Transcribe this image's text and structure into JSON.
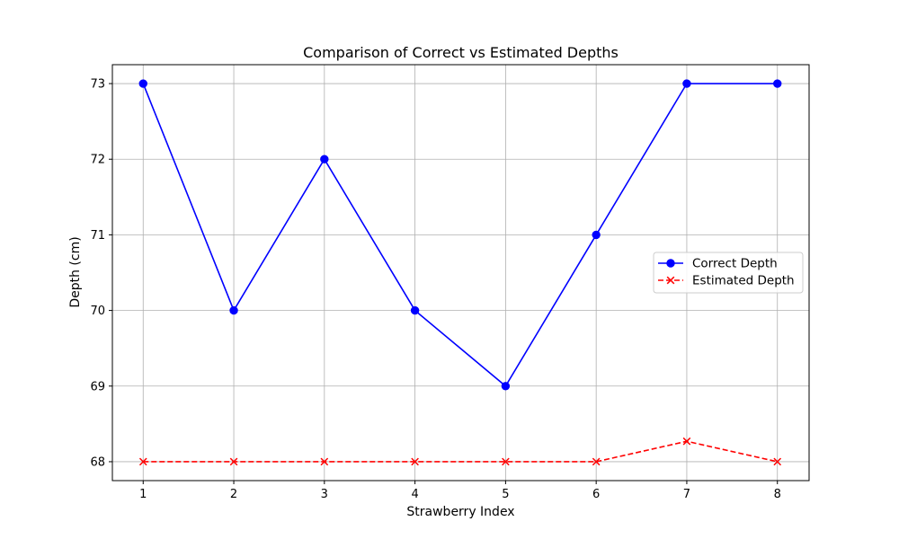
{
  "chart_data": {
    "type": "line",
    "title": "Comparison of Correct vs Estimated Depths",
    "xlabel": "Strawberry Index",
    "ylabel": "Depth (cm)",
    "x": [
      1,
      2,
      3,
      4,
      5,
      6,
      7,
      8
    ],
    "xlim": [
      0.66,
      8.35
    ],
    "ylim": [
      67.75,
      73.25
    ],
    "xticks": [
      "1",
      "2",
      "3",
      "4",
      "5",
      "6",
      "7",
      "8"
    ],
    "yticks": [
      "68",
      "69",
      "70",
      "71",
      "72",
      "73"
    ],
    "grid": true,
    "legend_position": "center-right",
    "series": [
      {
        "name": "Correct Depth",
        "values": [
          73,
          70,
          72,
          70,
          69,
          71,
          73,
          73
        ],
        "color": "#0000ff",
        "marker": "circle",
        "line_style": "solid"
      },
      {
        "name": "Estimated Depth",
        "values": [
          68,
          68,
          68,
          68,
          68,
          68,
          68.27,
          68
        ],
        "color": "#ff0000",
        "marker": "x",
        "line_style": "dashed"
      }
    ]
  }
}
